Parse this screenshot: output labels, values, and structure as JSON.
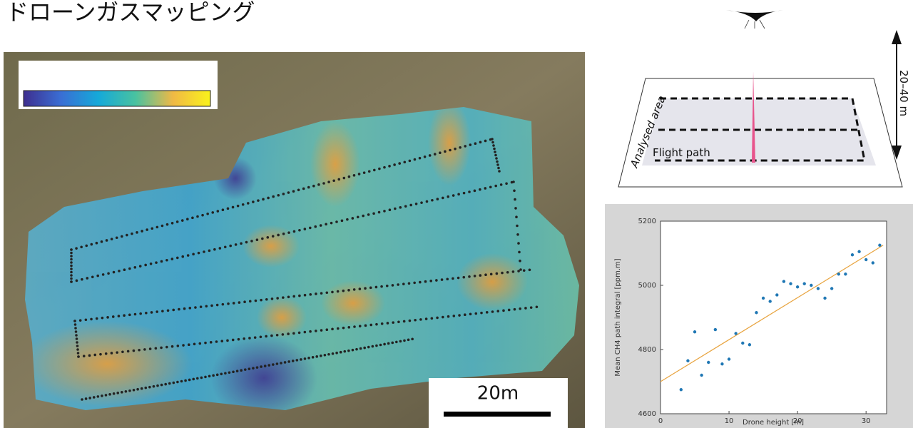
{
  "header": {
    "title": "ドローンガスマッピング"
  },
  "map": {
    "scale_label": "20m"
  },
  "diagram": {
    "area_label": "Analysed area",
    "path_label": "Flight path",
    "height_label": "20–40 m"
  },
  "chart_data": {
    "type": "scatter",
    "x_label": "Drone height [m]",
    "y_label": "Mean CH4 path integral [ppm.m]",
    "series": [
      {
        "color": "#1f77b4",
        "x": [
          3,
          4,
          5,
          6,
          7,
          8,
          9,
          10,
          11,
          12,
          13,
          14,
          15,
          16,
          17,
          18,
          19,
          20,
          21,
          22,
          23,
          24,
          25,
          26,
          27,
          28,
          29,
          30,
          31,
          32
        ],
        "values": [
          4675,
          4765,
          4855,
          4720,
          4760,
          4862,
          4755,
          4770,
          4850,
          4820,
          4815,
          4915,
          4960,
          4950,
          4970,
          5012,
          5005,
          4995,
          5005,
          5000,
          4990,
          4960,
          4990,
          5035,
          5035,
          5095,
          5105,
          5080,
          5070,
          5125
        ]
      }
    ],
    "trendline": {
      "color": "#e8a33d",
      "x": [
        0,
        32.5
      ],
      "values": [
        4700,
        5125
      ]
    },
    "xlim": [
      0,
      33
    ],
    "ylim": [
      4600,
      5200
    ],
    "xticks": [
      0,
      10,
      20,
      30
    ],
    "yticks": [
      4600,
      4800,
      5000,
      5200
    ]
  }
}
